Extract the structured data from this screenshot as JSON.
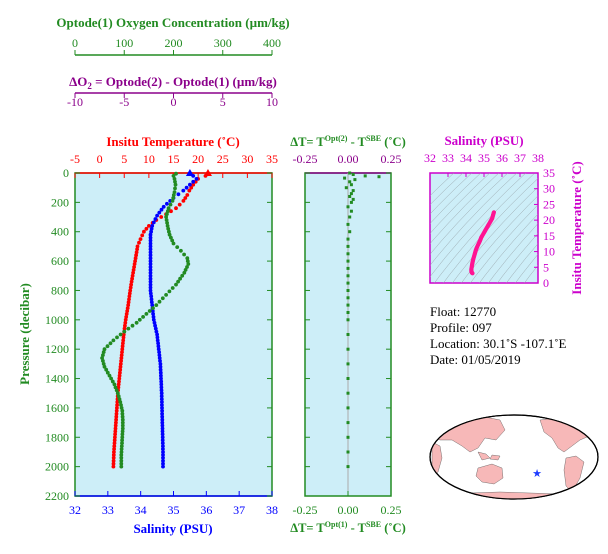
{
  "colors": {
    "oxygen": "#228b22",
    "delta_o2": "#8b008b",
    "temperature": "#ff0000",
    "salinity": "#0000ff",
    "salinity_panel": "#cc00cc",
    "pressure_axis": "#228b22",
    "panel_bg": "#cdeef8",
    "land": "#f7b8b8",
    "ocean": "#ffffff",
    "star": "#1e3cff"
  },
  "axes": {
    "oxygen": {
      "label": "Optode(1) Oxygen Concentration (µm/kg)",
      "ticks": [
        "0",
        "100",
        "200",
        "300",
        "400"
      ]
    },
    "delta_o2": {
      "label_prefix": "ΔO",
      "label_sub": "2",
      "label_rest": " = Optode(2) - Optode(1)    (µm/kg)",
      "ticks": [
        "-10",
        "-5",
        "0",
        "5",
        "10"
      ]
    },
    "temperature": {
      "label": "Insitu Temperature (˚C)",
      "ticks": [
        "-5",
        "0",
        "5",
        "10",
        "15",
        "20",
        "25",
        "30",
        "35"
      ]
    },
    "salinity": {
      "label": "Salinity (PSU)",
      "ticks": [
        "32",
        "33",
        "34",
        "35",
        "36",
        "37",
        "38"
      ]
    },
    "pressure": {
      "label": "Pressure (decibar)",
      "ticks": [
        "0",
        "200",
        "400",
        "600",
        "800",
        "1000",
        "1200",
        "1400",
        "1600",
        "1800",
        "2000",
        "2200"
      ]
    },
    "dt_top": {
      "label_a": "ΔT= T",
      "sup_a": "Opt(2)",
      "label_b": " - T",
      "sup_b": "SBE",
      "label_c": " (˚C)",
      "ticks": [
        "-0.25",
        "0.00",
        "0.25"
      ]
    },
    "dt_bottom": {
      "label_a": "ΔT= T",
      "sup_a": "Opt(1)",
      "label_b": " - T",
      "sup_b": "SBE",
      "label_c": " (˚C)",
      "ticks": [
        "-0.25",
        "0.00",
        "0.25"
      ]
    },
    "ts_salinity": {
      "label": "Salinity (PSU)",
      "ticks": [
        "32",
        "33",
        "34",
        "35",
        "36",
        "37",
        "38"
      ]
    },
    "ts_temperature": {
      "label": "Insitu Temperature (˚C)",
      "ticks": [
        "0",
        "5",
        "10",
        "15",
        "20",
        "25",
        "30",
        "35"
      ]
    }
  },
  "info": {
    "float": "Float:  12770",
    "profile": "Profile:  097",
    "location": "Location:  30.1˚S  -107.1˚E",
    "date": "Date:  01/05/2019"
  },
  "chart_data": [
    {
      "type": "line",
      "title": "",
      "ylabel": "Pressure (decibar)",
      "ylim": [
        2200,
        0
      ],
      "series": [
        {
          "name": "Insitu Temperature (˚C)",
          "axis": "temperature",
          "xlim": [
            -5,
            35
          ],
          "points": [
            [
              22,
              5
            ],
            [
              21.5,
              20
            ],
            [
              20,
              40
            ],
            [
              19,
              80
            ],
            [
              18.2,
              120
            ],
            [
              17.8,
              150
            ],
            [
              17,
              190
            ],
            [
              15.5,
              240
            ],
            [
              13.5,
              280
            ],
            [
              11.5,
              320
            ],
            [
              10,
              360
            ],
            [
              9,
              400
            ],
            [
              8.3,
              450
            ],
            [
              7.7,
              500
            ],
            [
              7.2,
              600
            ],
            [
              6.7,
              700
            ],
            [
              6.2,
              800
            ],
            [
              5.8,
              900
            ],
            [
              5.3,
              1000
            ],
            [
              4.9,
              1100
            ],
            [
              4.6,
              1200
            ],
            [
              4.3,
              1300
            ],
            [
              4.0,
              1400
            ],
            [
              3.7,
              1500
            ],
            [
              3.5,
              1600
            ],
            [
              3.3,
              1700
            ],
            [
              3.1,
              1800
            ],
            [
              2.9,
              1900
            ],
            [
              2.8,
              2000
            ]
          ]
        },
        {
          "name": "Salinity (PSU)",
          "axis": "salinity",
          "xlim": [
            32,
            38
          ],
          "points": [
            [
              35.5,
              5
            ],
            [
              35.6,
              20
            ],
            [
              35.7,
              40
            ],
            [
              35.5,
              80
            ],
            [
              35.3,
              120
            ],
            [
              35.0,
              170
            ],
            [
              34.7,
              230
            ],
            [
              34.5,
              290
            ],
            [
              34.35,
              360
            ],
            [
              34.3,
              420
            ],
            [
              34.3,
              500
            ],
            [
              34.3,
              600
            ],
            [
              34.3,
              700
            ],
            [
              34.3,
              800
            ],
            [
              34.35,
              900
            ],
            [
              34.4,
              1000
            ],
            [
              34.5,
              1100
            ],
            [
              34.55,
              1200
            ],
            [
              34.6,
              1300
            ],
            [
              34.62,
              1400
            ],
            [
              34.64,
              1500
            ],
            [
              34.65,
              1600
            ],
            [
              34.66,
              1700
            ],
            [
              34.67,
              1800
            ],
            [
              34.68,
              1900
            ],
            [
              34.68,
              2000
            ]
          ]
        },
        {
          "name": "Optode(1) Oxygen Concentration (µm/kg)",
          "axis": "oxygen",
          "xlim": [
            0,
            400
          ],
          "points": [
            [
              205,
              5
            ],
            [
              200,
              20
            ],
            [
              202,
              40
            ],
            [
              204,
              80
            ],
            [
              202,
              130
            ],
            [
              198,
              190
            ],
            [
              190,
              240
            ],
            [
              185,
              300
            ],
            [
              188,
              360
            ],
            [
              192,
              420
            ],
            [
              200,
              480
            ],
            [
              215,
              530
            ],
            [
              228,
              580
            ],
            [
              230,
              620
            ],
            [
              222,
              680
            ],
            [
              205,
              760
            ],
            [
              185,
              830
            ],
            [
              165,
              900
            ],
            [
              145,
              960
            ],
            [
              125,
              1020
            ],
            [
              100,
              1080
            ],
            [
              78,
              1140
            ],
            [
              60,
              1200
            ],
            [
              55,
              1260
            ],
            [
              60,
              1320
            ],
            [
              70,
              1380
            ],
            [
              80,
              1440
            ],
            [
              87,
              1500
            ],
            [
              92,
              1560
            ],
            [
              96,
              1620
            ],
            [
              97,
              1680
            ],
            [
              97,
              1740
            ],
            [
              96,
              1800
            ],
            [
              95,
              1860
            ],
            [
              94,
              1920
            ],
            [
              94,
              2000
            ]
          ]
        }
      ]
    },
    {
      "type": "scatter",
      "title": "",
      "xlabel": "ΔT= TOpt(1) - TSBE (˚C)",
      "xlim": [
        -0.25,
        0.25
      ],
      "ylim": [
        2200,
        0
      ],
      "series": [
        {
          "name": "ΔT Opt(2)",
          "points": [
            [
              0.01,
              0
            ],
            [
              0.03,
              10
            ],
            [
              0.1,
              20
            ],
            [
              0.18,
              25
            ],
            [
              -0.02,
              35
            ],
            [
              0.04,
              45
            ],
            [
              0.01,
              60
            ],
            [
              0.02,
              80
            ],
            [
              -0.01,
              100
            ],
            [
              0.03,
              120
            ],
            [
              0.02,
              140
            ],
            [
              0.01,
              160
            ],
            [
              0.03,
              180
            ],
            [
              0.02,
              200
            ],
            [
              0.0,
              230
            ],
            [
              0.02,
              260
            ],
            [
              0.01,
              300
            ],
            [
              0.0,
              350
            ],
            [
              0.01,
              400
            ],
            [
              0.0,
              450
            ],
            [
              0.0,
              500
            ],
            [
              0.0,
              550
            ],
            [
              0.0,
              600
            ],
            [
              0.0,
              650
            ],
            [
              0.0,
              700
            ],
            [
              0.0,
              750
            ],
            [
              0.0,
              800
            ],
            [
              0.0,
              850
            ],
            [
              0.0,
              900
            ],
            [
              0.0,
              950
            ],
            [
              0.0,
              1000
            ],
            [
              0.0,
              1100
            ],
            [
              0.0,
              1200
            ],
            [
              0.0,
              1300
            ],
            [
              0.0,
              1400
            ],
            [
              0.0,
              1500
            ],
            [
              0.0,
              1600
            ],
            [
              0.0,
              1700
            ],
            [
              0.0,
              1800
            ],
            [
              0.0,
              1900
            ],
            [
              0.0,
              2000
            ]
          ]
        }
      ]
    },
    {
      "type": "scatter",
      "title": "",
      "xlabel": "Salinity (PSU)",
      "ylabel": "Insitu Temperature (˚C)",
      "xlim": [
        32,
        38
      ],
      "ylim": [
        0,
        35
      ],
      "series": [
        {
          "name": "T-S",
          "points": [
            [
              35.55,
              22.5
            ],
            [
              35.5,
              21.5
            ],
            [
              35.45,
              20.5
            ],
            [
              35.35,
              19.5
            ],
            [
              35.25,
              18.5
            ],
            [
              35.15,
              17.5
            ],
            [
              35.05,
              16.5
            ],
            [
              34.95,
              15.5
            ],
            [
              34.85,
              14.5
            ],
            [
              34.78,
              13.5
            ],
            [
              34.7,
              12.5
            ],
            [
              34.62,
              11.5
            ],
            [
              34.55,
              10.5
            ],
            [
              34.5,
              9.5
            ],
            [
              34.45,
              8.5
            ],
            [
              34.4,
              7.5
            ],
            [
              34.36,
              6.5
            ],
            [
              34.33,
              5.5
            ],
            [
              34.3,
              4.5
            ],
            [
              34.3,
              3.8
            ],
            [
              34.32,
              3.3
            ],
            [
              34.38,
              3.0
            ]
          ]
        }
      ]
    }
  ]
}
